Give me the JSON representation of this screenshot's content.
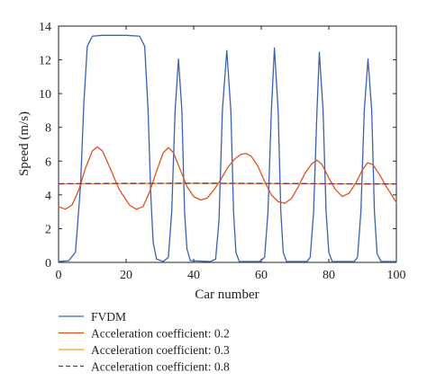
{
  "chart_data": {
    "type": "line",
    "xlabel": "Car number",
    "ylabel": "Speed (m/s)",
    "xlim": [
      0,
      100
    ],
    "ylim": [
      0,
      14
    ],
    "x_ticks": [
      0,
      20,
      40,
      60,
      80,
      100
    ],
    "y_ticks": [
      0,
      2,
      4,
      6,
      8,
      10,
      12,
      14
    ],
    "grid": false,
    "legend_position": "below-chart",
    "series": [
      {
        "name": "FVDM",
        "color": "#3a62b3",
        "dash": "solid",
        "points": [
          [
            0,
            0.05
          ],
          [
            3,
            0.1
          ],
          [
            5,
            0.6
          ],
          [
            6.5,
            4.5
          ],
          [
            7.5,
            9.5
          ],
          [
            8.5,
            12.8
          ],
          [
            10,
            13.4
          ],
          [
            13,
            13.45
          ],
          [
            20,
            13.45
          ],
          [
            24,
            13.4
          ],
          [
            25.5,
            12.8
          ],
          [
            26.5,
            9
          ],
          [
            27.3,
            4
          ],
          [
            28,
            1.2
          ],
          [
            29,
            0.2
          ],
          [
            31,
            0.05
          ],
          [
            32.5,
            0.3
          ],
          [
            33.5,
            3
          ],
          [
            34.5,
            9
          ],
          [
            35.5,
            12.05
          ],
          [
            36.5,
            9
          ],
          [
            37.3,
            3
          ],
          [
            38,
            0.8
          ],
          [
            39,
            0.1
          ],
          [
            45,
            0.05
          ],
          [
            46.5,
            0.2
          ],
          [
            47.5,
            2.5
          ],
          [
            48.5,
            9
          ],
          [
            49.8,
            12.55
          ],
          [
            51,
            9
          ],
          [
            51.8,
            3
          ],
          [
            52.5,
            0.6
          ],
          [
            53.5,
            0.05
          ],
          [
            59.5,
            0.05
          ],
          [
            61,
            0.3
          ],
          [
            62,
            3
          ],
          [
            63,
            9
          ],
          [
            63.9,
            12.7
          ],
          [
            65,
            9
          ],
          [
            65.8,
            3
          ],
          [
            66.5,
            0.6
          ],
          [
            67.5,
            0.05
          ],
          [
            73.5,
            0.05
          ],
          [
            74.5,
            0.3
          ],
          [
            75.5,
            3
          ],
          [
            76.5,
            9
          ],
          [
            77.2,
            12.45
          ],
          [
            78.3,
            9
          ],
          [
            79.2,
            3
          ],
          [
            80,
            0.6
          ],
          [
            81,
            0.05
          ],
          [
            87.5,
            0.05
          ],
          [
            88.5,
            0.3
          ],
          [
            89.5,
            3
          ],
          [
            90.5,
            9
          ],
          [
            91.6,
            12.05
          ],
          [
            92.7,
            9
          ],
          [
            93.5,
            3
          ],
          [
            94.3,
            0.5
          ],
          [
            95.5,
            0.05
          ],
          [
            100,
            0.05
          ]
        ]
      },
      {
        "name": "Acceleration coefficient: 0.2",
        "color": "#e0521f",
        "dash": "solid",
        "points": [
          [
            0,
            3.3
          ],
          [
            2,
            3.15
          ],
          [
            4,
            3.4
          ],
          [
            6,
            4.3
          ],
          [
            8,
            5.6
          ],
          [
            10,
            6.6
          ],
          [
            11.5,
            6.85
          ],
          [
            13,
            6.6
          ],
          [
            15,
            5.7
          ],
          [
            18,
            4.3
          ],
          [
            21,
            3.4
          ],
          [
            23,
            3.15
          ],
          [
            25,
            3.3
          ],
          [
            27,
            4.2
          ],
          [
            29,
            5.4
          ],
          [
            31,
            6.5
          ],
          [
            32.5,
            6.8
          ],
          [
            34,
            6.5
          ],
          [
            36,
            5.5
          ],
          [
            38,
            4.5
          ],
          [
            40,
            3.9
          ],
          [
            42,
            3.7
          ],
          [
            44,
            3.8
          ],
          [
            46,
            4.3
          ],
          [
            48,
            4.9
          ],
          [
            50,
            5.6
          ],
          [
            52,
            6.1
          ],
          [
            54,
            6.4
          ],
          [
            55.5,
            6.45
          ],
          [
            57,
            6.3
          ],
          [
            59,
            5.7
          ],
          [
            61,
            4.8
          ],
          [
            63,
            4.0
          ],
          [
            65,
            3.6
          ],
          [
            67,
            3.5
          ],
          [
            69,
            3.8
          ],
          [
            71,
            4.5
          ],
          [
            73,
            5.3
          ],
          [
            75,
            5.85
          ],
          [
            76.5,
            6.05
          ],
          [
            78,
            5.8
          ],
          [
            80,
            5.0
          ],
          [
            82,
            4.3
          ],
          [
            84,
            3.9
          ],
          [
            86,
            4.1
          ],
          [
            88,
            4.7
          ],
          [
            90,
            5.5
          ],
          [
            91.5,
            5.9
          ],
          [
            93,
            5.8
          ],
          [
            95,
            5.2
          ],
          [
            97,
            4.5
          ],
          [
            100,
            3.55
          ]
        ]
      },
      {
        "name": "Acceleration coefficient: 0.3",
        "color": "#f0a31c",
        "dash": "solid",
        "points": [
          [
            0,
            4.65
          ],
          [
            20,
            4.67
          ],
          [
            40,
            4.68
          ],
          [
            60,
            4.67
          ],
          [
            80,
            4.65
          ],
          [
            100,
            4.64
          ]
        ]
      },
      {
        "name": "Acceleration coefficient: 0.8",
        "color": "#7b2a63",
        "dash": "dashed",
        "points": [
          [
            0,
            4.66
          ],
          [
            20,
            4.68
          ],
          [
            40,
            4.69
          ],
          [
            60,
            4.68
          ],
          [
            80,
            4.66
          ],
          [
            100,
            4.65
          ]
        ]
      }
    ]
  }
}
